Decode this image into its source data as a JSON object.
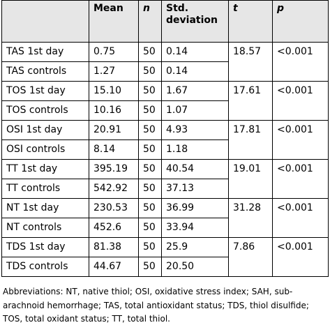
{
  "table": {
    "header": [
      "",
      "Mean",
      "n",
      "Std. deviation",
      "t",
      "p"
    ],
    "groups": [
      {
        "rows": [
          [
            "TAS 1st day",
            "0.75",
            "50",
            "0.14"
          ],
          [
            "TAS controls",
            "1.27",
            "50",
            "0.14"
          ]
        ],
        "t": "18.57",
        "p": "<0.001"
      },
      {
        "rows": [
          [
            "TOS 1st day",
            "15.10",
            "50",
            "1.67"
          ],
          [
            "TOS controls",
            "10.16",
            "50",
            "1.07"
          ]
        ],
        "t": "17.61",
        "p": "<0.001"
      },
      {
        "rows": [
          [
            "OSI 1st day",
            "20.91",
            "50",
            "4.93"
          ],
          [
            "OSI controls",
            "8.14",
            "50",
            "1.18"
          ]
        ],
        "t": "17.81",
        "p": "<0.001"
      },
      {
        "rows": [
          [
            "TT 1st day",
            "395.19",
            "50",
            "40.54"
          ],
          [
            "TT controls",
            "542.92",
            "50",
            "37.13"
          ]
        ],
        "t": "19.01",
        "p": "<0.001"
      },
      {
        "rows": [
          [
            "NT 1st day",
            "230.53",
            "50",
            "36.99"
          ],
          [
            "NT controls",
            "452.6",
            "50",
            "33.94"
          ]
        ],
        "t": "31.28",
        "p": "<0.001"
      },
      {
        "rows": [
          [
            "TDS 1st day",
            "81.38",
            "50",
            "25.9"
          ],
          [
            "TDS controls",
            "44.67",
            "50",
            "20.50"
          ]
        ],
        "t": "7.86",
        "p": "<0.001"
      }
    ]
  },
  "footnote": "Abbreviations: NT, native thiol; OSI, oxidative stress index; SAH, sub-arachnoid hemorrhage; TAS, total antioxidant status; TDS, thiol disulfide; TOS, total oxidant status; TT, total thiol."
}
